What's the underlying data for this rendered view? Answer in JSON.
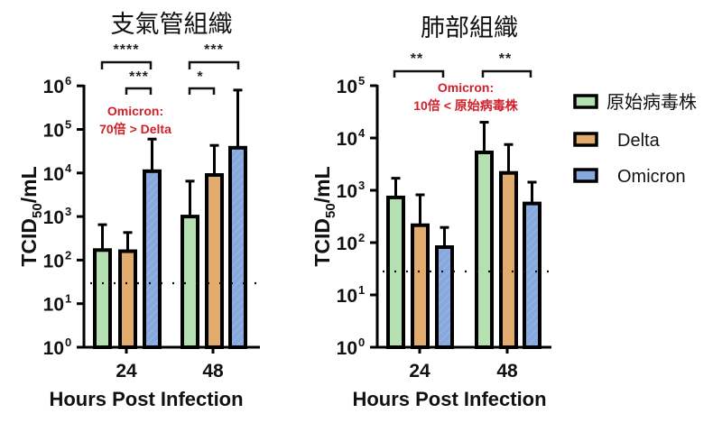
{
  "chart_data": [
    {
      "type": "bar",
      "title": "支氣管組織",
      "xlabel": "Hours Post Infection",
      "ylabel": "TCID50/mL",
      "yscale": "log",
      "ylim": [
        1,
        1000000
      ],
      "yticks": [
        "10^0",
        "10^1",
        "10^2",
        "10^3",
        "10^4",
        "10^5",
        "10^6"
      ],
      "categories": [
        "24",
        "48"
      ],
      "series": [
        {
          "name": "原始病毒株",
          "values": [
            170,
            1000
          ],
          "error_upper": [
            650,
            6500
          ]
        },
        {
          "name": "Delta",
          "values": [
            160,
            9000
          ],
          "error_upper": [
            430,
            43000
          ]
        },
        {
          "name": "Omicron",
          "values": [
            11000,
            38000
          ],
          "error_upper": [
            60000,
            800000
          ]
        }
      ],
      "detection_limit": 30,
      "significance": [
        {
          "group": "24",
          "between": [
            "原始病毒株",
            "Omicron"
          ],
          "label": "****"
        },
        {
          "group": "24",
          "between": [
            "Delta",
            "Omicron"
          ],
          "label": "***"
        },
        {
          "group": "48",
          "between": [
            "原始病毒株",
            "Omicron"
          ],
          "label": "***"
        },
        {
          "group": "48",
          "between": [
            "原始病毒株",
            "Delta"
          ],
          "label": "*"
        }
      ],
      "annotation": [
        "Omicron:",
        "70倍 > Delta"
      ]
    },
    {
      "type": "bar",
      "title": "肺部組織",
      "xlabel": "Hours Post Infection",
      "ylabel": "TCID50/mL",
      "yscale": "log",
      "ylim": [
        1,
        100000
      ],
      "yticks": [
        "10^0",
        "10^1",
        "10^2",
        "10^3",
        "10^4",
        "10^5"
      ],
      "categories": [
        "24",
        "48"
      ],
      "series": [
        {
          "name": "原始病毒株",
          "values": [
            730,
            5300
          ],
          "error_upper": [
            1700,
            20000
          ]
        },
        {
          "name": "Delta",
          "values": [
            215,
            2150
          ],
          "error_upper": [
            820,
            7500
          ]
        },
        {
          "name": "Omicron",
          "values": [
            82,
            560
          ],
          "error_upper": [
            195,
            1430
          ]
        }
      ],
      "detection_limit": 28,
      "significance": [
        {
          "group": "24",
          "between": [
            "原始病毒株",
            "Omicron"
          ],
          "label": "**"
        },
        {
          "group": "48",
          "between": [
            "原始病毒株",
            "Omicron"
          ],
          "label": "**"
        }
      ],
      "annotation": [
        "Omicron:",
        "10倍 < 原始病毒株"
      ]
    }
  ],
  "legend": [
    {
      "label": "原始病毒株",
      "color": "#b5e0b1"
    },
    {
      "label": "Delta",
      "color": "#e3ac6f"
    },
    {
      "label": "Omicron",
      "color": "#87a9de"
    }
  ],
  "colors": {
    "ancestral": "#b5e0b1",
    "delta": "#e3ac6f",
    "omicron": "#87a9de",
    "annotation": "#d1202a",
    "outline": "#000000"
  },
  "charts": {
    "left": {
      "title": "支氣管組織",
      "xlabel": "Hours Post Infection",
      "ylabel_main": "TCID",
      "ylabel_sub": "50",
      "ylabel_unit": "/mL",
      "xticks": [
        "24",
        "48"
      ],
      "annotation_line1": "Omicron:",
      "annotation_line2": "70倍 > Delta",
      "stars": [
        "****",
        "***",
        "***",
        "*"
      ]
    },
    "right": {
      "title": "肺部組織",
      "xlabel": "Hours Post Infection",
      "ylabel_main": "TCID",
      "ylabel_sub": "50",
      "ylabel_unit": "/mL",
      "xticks": [
        "24",
        "48"
      ],
      "annotation_line1": "Omicron:",
      "annotation_line2": "10倍 < 原始病毒株",
      "stars": [
        "**",
        "**"
      ]
    }
  }
}
